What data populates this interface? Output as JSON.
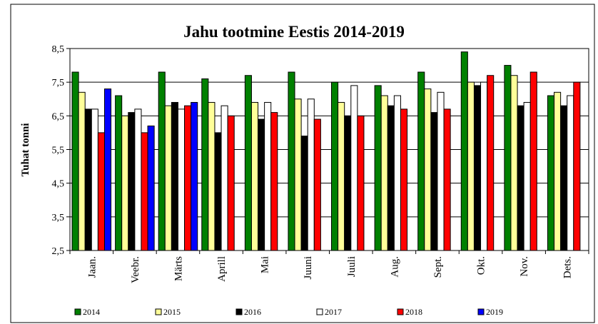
{
  "chart_data": {
    "type": "bar",
    "title": "Jahu tootmine  Eestis 2014-2019",
    "y_label": "Tuhat tonni",
    "categories": [
      "Jaan.",
      "Veebr.",
      "Märts",
      "Aprill",
      "Mai",
      "Juuni",
      "Juuli",
      "Aug.",
      "Sept.",
      "Okt.",
      "Nov.",
      "Dets."
    ],
    "series": [
      {
        "name": "2014",
        "color": "#008000",
        "values": [
          7.8,
          7.1,
          7.8,
          7.6,
          7.7,
          7.8,
          7.5,
          7.4,
          7.8,
          8.4,
          8.0,
          7.1
        ]
      },
      {
        "name": "2015",
        "color": "#ffff99",
        "values": [
          7.2,
          6.5,
          6.8,
          6.9,
          6.9,
          7.0,
          6.9,
          7.1,
          7.3,
          7.5,
          7.7,
          7.2
        ]
      },
      {
        "name": "2016",
        "color": "#000000",
        "values": [
          6.7,
          6.6,
          6.9,
          6.0,
          6.4,
          5.9,
          6.5,
          6.8,
          6.6,
          7.4,
          6.8,
          6.8
        ]
      },
      {
        "name": "2017",
        "color": "#ffffff",
        "values": [
          6.7,
          6.7,
          6.7,
          6.8,
          6.9,
          7.0,
          7.4,
          7.1,
          7.2,
          7.5,
          6.9,
          7.1
        ]
      },
      {
        "name": "2018",
        "color": "#ff0000",
        "values": [
          6.0,
          6.0,
          6.8,
          6.5,
          6.6,
          6.4,
          6.5,
          6.7,
          6.7,
          7.7,
          7.8,
          7.5
        ]
      },
      {
        "name": "2019",
        "color": "#0000ff",
        "values": [
          7.3,
          6.2,
          6.9,
          null,
          null,
          null,
          null,
          null,
          null,
          null,
          null,
          null
        ]
      }
    ],
    "ylim": [
      2.5,
      8.5
    ],
    "yticks": [
      {
        "value": 2.5,
        "label": "2,5"
      },
      {
        "value": 3.5,
        "label": "3,5"
      },
      {
        "value": 4.5,
        "label": "4,5"
      },
      {
        "value": 5.5,
        "label": "5,5"
      },
      {
        "value": 6.5,
        "label": "6,5"
      },
      {
        "value": 7.5,
        "label": "7,5"
      },
      {
        "value": 8.5,
        "label": "8,5"
      }
    ],
    "grid": true,
    "legend": "bottom"
  }
}
